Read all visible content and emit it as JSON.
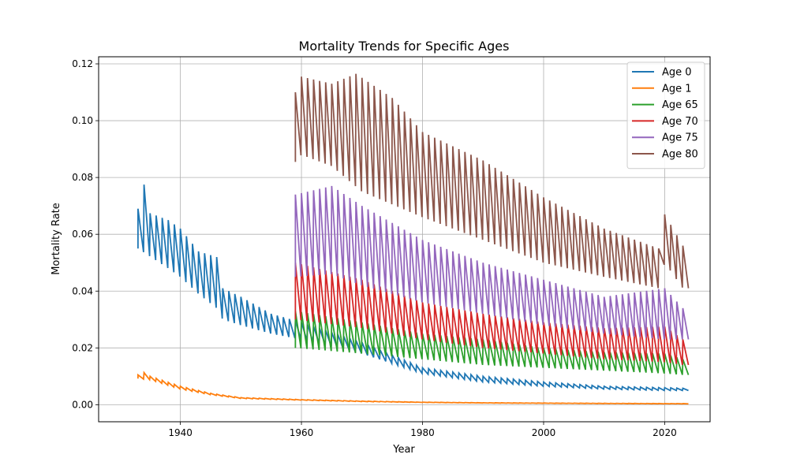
{
  "chart_data": {
    "type": "line",
    "title": "Mortality Trends for Specific Ages",
    "xlabel": "Year",
    "ylabel": "Mortality Rate",
    "xlim": [
      1926.5,
      2027.5
    ],
    "ylim": [
      -0.006,
      0.1225
    ],
    "xticks": [
      1940,
      1960,
      1980,
      2000,
      2020
    ],
    "yticks": [
      0.0,
      0.02,
      0.04,
      0.06,
      0.08,
      0.1,
      0.12
    ],
    "ytick_labels": [
      "0.00",
      "0.02",
      "0.04",
      "0.06",
      "0.08",
      "0.10",
      "0.12"
    ],
    "grid": true,
    "legend_position": "top-right",
    "series": [
      {
        "name": "Age 0",
        "color": "#1f77b4",
        "x_start": 1933,
        "x_end": 2023,
        "peaks": [
          [
            1933,
            0.069
          ],
          [
            1938,
            0.065
          ],
          [
            1940,
            0.062
          ],
          [
            1943,
            0.054
          ],
          [
            1946,
            0.052
          ],
          [
            1947,
            0.041
          ],
          [
            1950,
            0.038
          ],
          [
            1955,
            0.032
          ],
          [
            1960,
            0.029
          ],
          [
            1970,
            0.022
          ],
          [
            1980,
            0.013
          ],
          [
            1990,
            0.01
          ],
          [
            2000,
            0.008
          ],
          [
            2010,
            0.0065
          ],
          [
            2020,
            0.006
          ],
          [
            2023,
            0.0058
          ]
        ],
        "troughs": [
          [
            1933,
            0.055
          ],
          [
            1938,
            0.048
          ],
          [
            1940,
            0.045
          ],
          [
            1943,
            0.039
          ],
          [
            1946,
            0.034
          ],
          [
            1947,
            0.03
          ],
          [
            1950,
            0.028
          ],
          [
            1955,
            0.025
          ],
          [
            1960,
            0.023
          ],
          [
            1970,
            0.018
          ],
          [
            1980,
            0.011
          ],
          [
            1990,
            0.008
          ],
          [
            2000,
            0.0065
          ],
          [
            2010,
            0.0055
          ],
          [
            2020,
            0.005
          ],
          [
            2023,
            0.005
          ]
        ],
        "spikes": [
          [
            1934,
            0.0775
          ]
        ]
      },
      {
        "name": "Age 1",
        "color": "#ff7f0e",
        "x_start": 1933,
        "x_end": 2023,
        "peaks": [
          [
            1933,
            0.0105
          ],
          [
            1935,
            0.01
          ],
          [
            1940,
            0.0065
          ],
          [
            1945,
            0.004
          ],
          [
            1950,
            0.0025
          ],
          [
            1960,
            0.0018
          ],
          [
            1970,
            0.0013
          ],
          [
            1980,
            0.0009
          ],
          [
            1990,
            0.0007
          ],
          [
            2000,
            0.0006
          ],
          [
            2010,
            0.0005
          ],
          [
            2023,
            0.0004
          ]
        ],
        "troughs": [
          [
            1933,
            0.0092
          ],
          [
            1935,
            0.0088
          ],
          [
            1940,
            0.0055
          ],
          [
            1945,
            0.0035
          ],
          [
            1950,
            0.0022
          ],
          [
            1960,
            0.0016
          ],
          [
            1970,
            0.0011
          ],
          [
            1980,
            0.0008
          ],
          [
            1990,
            0.0006
          ],
          [
            2000,
            0.0005
          ],
          [
            2010,
            0.0004
          ],
          [
            2023,
            0.0003
          ]
        ],
        "spikes": [
          [
            1934,
            0.0113
          ]
        ]
      },
      {
        "name": "Age 65",
        "color": "#2ca02c",
        "x_start": 1959,
        "x_end": 2023,
        "peaks": [
          [
            1959,
            0.033
          ],
          [
            1970,
            0.029
          ],
          [
            1980,
            0.025
          ],
          [
            1990,
            0.023
          ],
          [
            2000,
            0.02
          ],
          [
            2010,
            0.0185
          ],
          [
            2020,
            0.018
          ],
          [
            2023,
            0.016
          ]
        ],
        "troughs": [
          [
            1959,
            0.02
          ],
          [
            1970,
            0.018
          ],
          [
            1980,
            0.016
          ],
          [
            1990,
            0.014
          ],
          [
            2000,
            0.013
          ],
          [
            2010,
            0.012
          ],
          [
            2020,
            0.011
          ],
          [
            2023,
            0.0105
          ]
        ],
        "spikes": []
      },
      {
        "name": "Age 70",
        "color": "#d62728",
        "x_start": 1959,
        "x_end": 2023,
        "peaks": [
          [
            1959,
            0.05
          ],
          [
            1970,
            0.044
          ],
          [
            1980,
            0.036
          ],
          [
            1990,
            0.032
          ],
          [
            2000,
            0.029
          ],
          [
            2010,
            0.027
          ],
          [
            2020,
            0.0275
          ],
          [
            2023,
            0.023
          ]
        ],
        "troughs": [
          [
            1959,
            0.03
          ],
          [
            1970,
            0.027
          ],
          [
            1980,
            0.023
          ],
          [
            1990,
            0.02
          ],
          [
            2000,
            0.018
          ],
          [
            2010,
            0.016
          ],
          [
            2020,
            0.015
          ],
          [
            2023,
            0.014
          ]
        ],
        "spikes": []
      },
      {
        "name": "Age 75",
        "color": "#9467bd",
        "x_start": 1959,
        "x_end": 2023,
        "peaks": [
          [
            1959,
            0.074
          ],
          [
            1965,
            0.077
          ],
          [
            1970,
            0.07
          ],
          [
            1980,
            0.058
          ],
          [
            1990,
            0.05
          ],
          [
            2000,
            0.044
          ],
          [
            2010,
            0.038
          ],
          [
            2020,
            0.041
          ],
          [
            2023,
            0.034
          ]
        ],
        "troughs": [
          [
            1959,
            0.045
          ],
          [
            1965,
            0.046
          ],
          [
            1970,
            0.042
          ],
          [
            1980,
            0.036
          ],
          [
            1990,
            0.032
          ],
          [
            2000,
            0.028
          ],
          [
            2010,
            0.025
          ],
          [
            2020,
            0.023
          ],
          [
            2023,
            0.023
          ]
        ],
        "spikes": []
      },
      {
        "name": "Age 80",
        "color": "#8c564b",
        "x_start": 1959,
        "x_end": 2023,
        "peaks": [
          [
            1959,
            0.11
          ],
          [
            1960,
            0.1155
          ],
          [
            1965,
            0.113
          ],
          [
            1969,
            0.1165
          ],
          [
            1975,
            0.108
          ],
          [
            1980,
            0.096
          ],
          [
            1990,
            0.086
          ],
          [
            2000,
            0.073
          ],
          [
            2010,
            0.062
          ],
          [
            2019,
            0.055
          ],
          [
            2020,
            0.067
          ],
          [
            2023,
            0.056
          ]
        ],
        "troughs": [
          [
            1959,
            0.0855
          ],
          [
            1960,
            0.088
          ],
          [
            1965,
            0.084
          ],
          [
            1970,
            0.075
          ],
          [
            1980,
            0.066
          ],
          [
            1990,
            0.058
          ],
          [
            2000,
            0.05
          ],
          [
            2010,
            0.045
          ],
          [
            2019,
            0.041
          ],
          [
            2020,
            0.05
          ],
          [
            2023,
            0.041
          ]
        ],
        "spikes": []
      }
    ]
  }
}
